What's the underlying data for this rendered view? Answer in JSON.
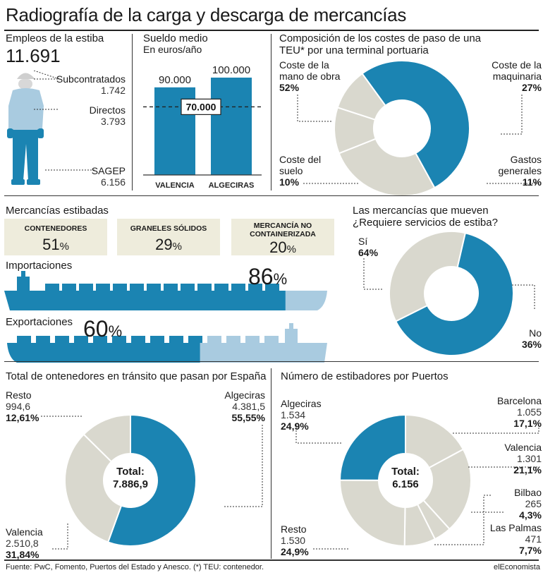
{
  "title": "Radiografía de la carga y descarga de mercancías",
  "colors": {
    "blue": "#1b84b2",
    "light_blue": "#a9cbe0",
    "grey": "#d9d8ce",
    "box": "#eeecdc"
  },
  "empleos": {
    "heading": "Empleos de la estiba",
    "total": "11.691",
    "rows": [
      {
        "label": "Subcontratados",
        "value": "1.742"
      },
      {
        "label": "Directos",
        "value": "3.793"
      },
      {
        "label": "SAGEP",
        "value": "6.156"
      }
    ]
  },
  "sueldo": {
    "heading": "Sueldo medio",
    "subheading": "En euros/año",
    "reference_label": "70.000"
  },
  "costes": {
    "heading": "Composición de los costes de paso de una TEU* por una terminal portuaria",
    "slices": [
      {
        "label": "Coste de la mano de obra",
        "pct": "52%"
      },
      {
        "label": "Coste de la maquinaria",
        "pct": "27%"
      },
      {
        "label": "Gastos generales",
        "pct": "11%"
      },
      {
        "label": "Coste del suelo",
        "pct": "10%"
      }
    ]
  },
  "estibadas": {
    "heading": "Mercancías estibadas",
    "boxes": [
      {
        "label": "CONTENEDORES",
        "value": "51",
        "unit": "%"
      },
      {
        "label": "GRANELES SÓLIDOS",
        "value": "29",
        "unit": "%"
      },
      {
        "label": "MERCANCÍA NO CONTAINERIZADA",
        "value": "20",
        "unit": "%"
      }
    ],
    "importaciones": {
      "label": "Importaciones",
      "value": "86",
      "unit": "%"
    },
    "exportaciones": {
      "label": "Exportaciones",
      "value": "60",
      "unit": "%"
    }
  },
  "mueven": {
    "heading": "Las mercancías que mueven",
    "subheading": "¿Requiere servicios de estiba?",
    "si": {
      "label": "Sí",
      "pct": "64%"
    },
    "no": {
      "label": "No",
      "pct": "36%"
    }
  },
  "transito": {
    "heading": "Total de ontenedores en tránsito que pasan por España",
    "center_label": "Total:",
    "center_value": "7.886,9",
    "slices": [
      {
        "label": "Algeciras",
        "value": "4.381,5",
        "pct": "55,55%"
      },
      {
        "label": "Valencia",
        "value": "2.510,8",
        "pct": "31,84%"
      },
      {
        "label": "Resto",
        "value": "994,6",
        "pct": "12,61%"
      }
    ]
  },
  "estibadores": {
    "heading": "Número de estibadores por Puertos",
    "center_label": "Total:",
    "center_value": "6.156",
    "slices": [
      {
        "label": "Barcelona",
        "value": "1.055",
        "pct": "17,1%"
      },
      {
        "label": "Valencia",
        "value": "1.301",
        "pct": "21,1%"
      },
      {
        "label": "Bilbao",
        "value": "265",
        "pct": "4,3%"
      },
      {
        "label": "Las Palmas",
        "value": "471",
        "pct": "7,7%"
      },
      {
        "label": "Resto",
        "value": "1.530",
        "pct": "24,9%"
      },
      {
        "label": "Algeciras",
        "value": "1.534",
        "pct": "24,9%"
      }
    ]
  },
  "footer": {
    "source": "Fuente: PwC, Fomento, Puertos del Estado y Anesco. (*) TEU: contenedor.",
    "brand": "elEconomista"
  },
  "chart_data": [
    {
      "type": "bar",
      "title": "Sueldo medio",
      "ylabel": "En euros/año",
      "categories": [
        "VALENCIA",
        "ALGECIRAS"
      ],
      "values": [
        90000,
        100000
      ],
      "value_labels": [
        "90.000",
        "100.000"
      ],
      "reference_line": 70000,
      "ylim": [
        0,
        100000
      ]
    },
    {
      "type": "pie",
      "title": "Composición de los costes de paso de una TEU* por una terminal portuaria",
      "categories": [
        "Coste de la mano de obra",
        "Coste de la maquinaria",
        "Gastos generales",
        "Coste del suelo"
      ],
      "values": [
        52,
        27,
        11,
        10
      ]
    },
    {
      "type": "pie",
      "title": "Las mercancías que mueven",
      "categories": [
        "Sí",
        "No"
      ],
      "values": [
        64,
        36
      ]
    },
    {
      "type": "pie",
      "title": "Total de ontenedores en tránsito que pasan por España",
      "categories": [
        "Algeciras",
        "Valencia",
        "Resto"
      ],
      "values": [
        4381.5,
        2510.8,
        994.6
      ]
    },
    {
      "type": "pie",
      "title": "Número de estibadores por Puertos",
      "categories": [
        "Barcelona",
        "Valencia",
        "Bilbao",
        "Las Palmas",
        "Resto",
        "Algeciras"
      ],
      "values": [
        1055,
        1301,
        265,
        471,
        1530,
        1534
      ]
    },
    {
      "type": "bar",
      "title": "Mercancías estibadas",
      "categories": [
        "CONTENEDORES",
        "GRANELES SÓLIDOS",
        "MERCANCÍA NO CONTAINERIZADA"
      ],
      "values": [
        51,
        29,
        20
      ]
    },
    {
      "type": "bar",
      "title": "Importaciones / Exportaciones",
      "categories": [
        "Importaciones",
        "Exportaciones"
      ],
      "values": [
        86,
        60
      ]
    }
  ]
}
